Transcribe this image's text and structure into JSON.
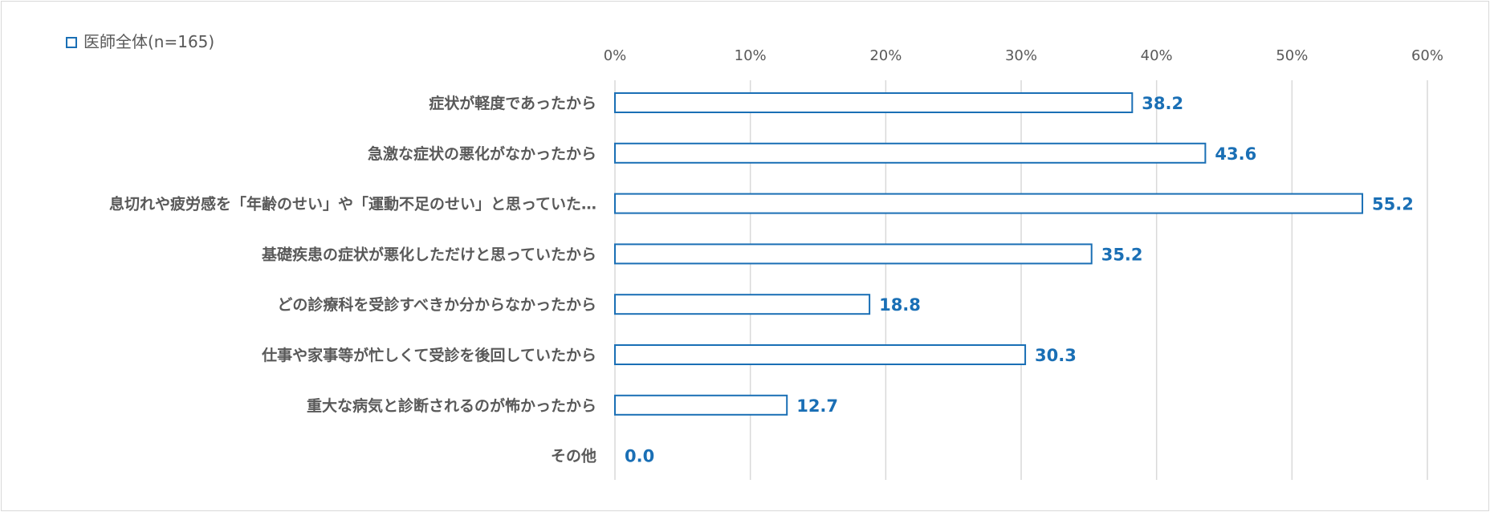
{
  "chart_data": {
    "type": "bar",
    "orientation": "horizontal",
    "categories": [
      "症状が軽度であったから",
      "急激な症状の悪化がなかったから",
      "息切れや疲労感を「年齢のせい」や「運動不足のせい」と思っていた…",
      "基礎疾患の症状が悪化しただけと思っていたから",
      "どの診療科を受診すべきか分からなかったから",
      "仕事や家事等が忙しくて受診を後回していたから",
      "重大な病気と診断されるのが怖かったから",
      "その他"
    ],
    "series": [
      {
        "name": "医師全体(n=165)",
        "values": [
          38.2,
          43.6,
          55.2,
          35.2,
          18.8,
          30.3,
          12.7,
          0.0
        ],
        "labels": [
          "38.2",
          "43.6",
          "55.2",
          "35.2",
          "18.8",
          "30.3",
          "12.7",
          "0.0"
        ]
      }
    ],
    "xlim": [
      0,
      60
    ],
    "xticks": [
      "0%",
      "10%",
      "20%",
      "30%",
      "40%",
      "50%",
      "60%"
    ],
    "grid": true,
    "legend_position": "top-left",
    "colors": {
      "bar_stroke": "#1a6fb5",
      "bar_fill": "#ffffff",
      "data_label": "#1a6fb5",
      "text": "#595959",
      "grid": "#d9d9d9"
    }
  }
}
